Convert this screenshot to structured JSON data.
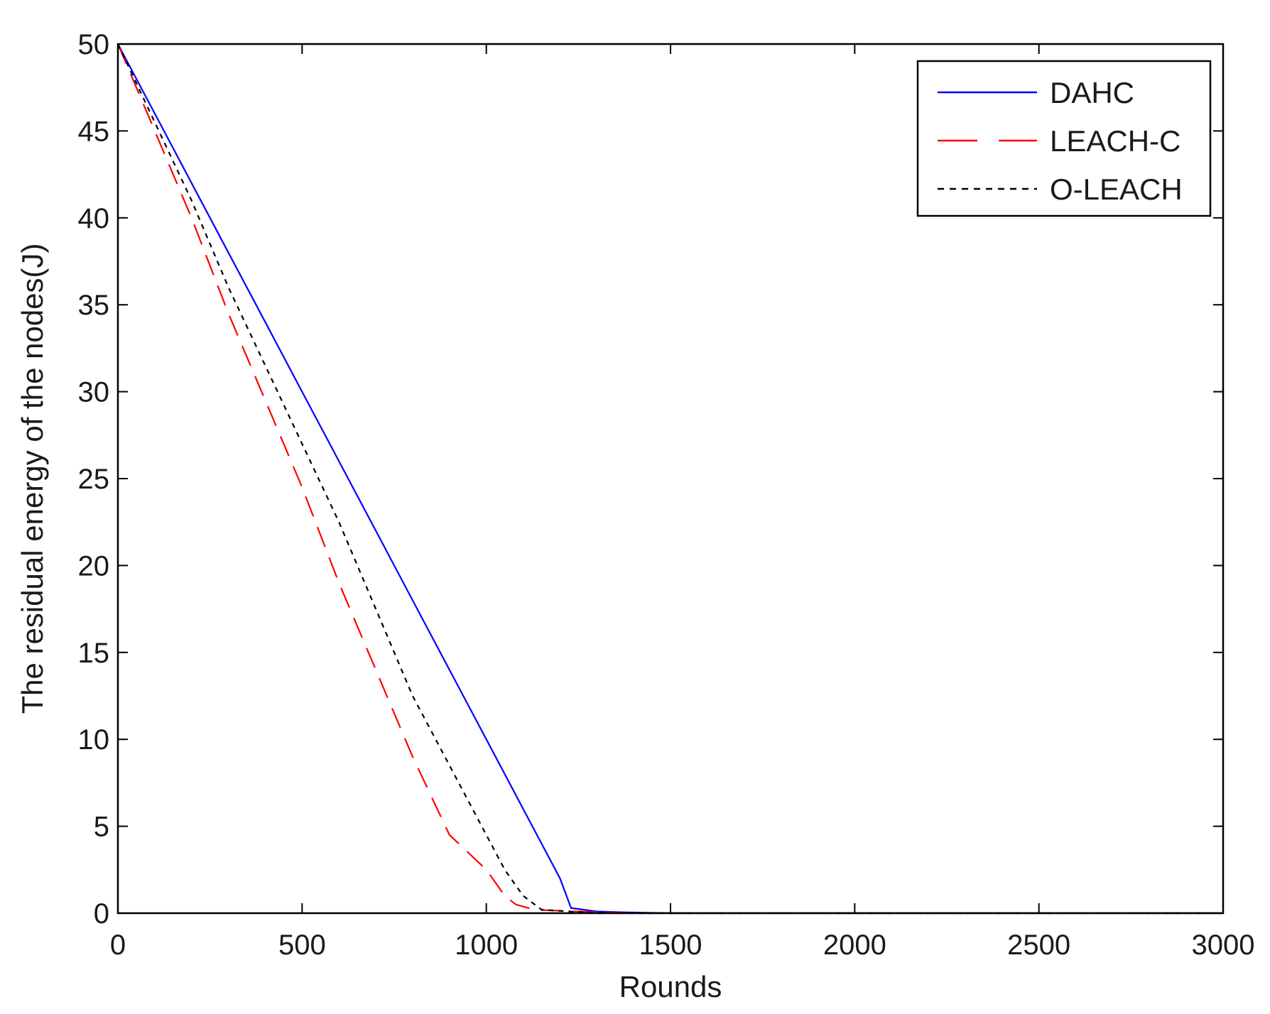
{
  "chart_data": {
    "type": "line",
    "title": "",
    "xlabel": "Rounds",
    "ylabel": "The residual energy of the nodes(J)",
    "xlim": [
      0,
      3000
    ],
    "ylim": [
      0,
      50
    ],
    "xticks": [
      0,
      500,
      1000,
      1500,
      2000,
      2500,
      3000
    ],
    "yticks": [
      0,
      5,
      10,
      15,
      20,
      25,
      30,
      35,
      40,
      45,
      50
    ],
    "grid": false,
    "legend_position": "top-right",
    "series": [
      {
        "name": "DAHC",
        "color": "#0000ff",
        "line_style": "solid",
        "x": [
          0,
          100,
          200,
          300,
          400,
          500,
          600,
          700,
          800,
          900,
          1000,
          1100,
          1200,
          1230,
          1300,
          1380,
          1500,
          2000,
          2500,
          3000
        ],
        "y": [
          50,
          46,
          42,
          38,
          34,
          30,
          26,
          22,
          18,
          14,
          10,
          6,
          2,
          0.3,
          0.1,
          0.05,
          0,
          0,
          0,
          0
        ]
      },
      {
        "name": "LEACH-C",
        "color": "#ff0000",
        "line_style": "dashed",
        "x": [
          0,
          100,
          200,
          300,
          400,
          500,
          600,
          700,
          800,
          900,
          1000,
          1050,
          1080,
          1130,
          1250,
          1400,
          2000,
          2500,
          3000
        ],
        "y": [
          50,
          45,
          40,
          34.5,
          29.5,
          24.5,
          19,
          14,
          9,
          4.5,
          2.5,
          1,
          0.5,
          0.2,
          0.1,
          0,
          0,
          0,
          0
        ]
      },
      {
        "name": "O-LEACH",
        "color": "#000000",
        "line_style": "dotted",
        "x": [
          0,
          100,
          200,
          300,
          400,
          500,
          600,
          700,
          800,
          900,
          1000,
          1050,
          1100,
          1150,
          1300,
          2000,
          2500,
          3000
        ],
        "y": [
          50,
          45.5,
          41,
          36,
          31.5,
          27,
          22.5,
          17.5,
          12.5,
          8.5,
          4.5,
          2.5,
          1,
          0.2,
          0,
          0,
          0,
          0
        ]
      }
    ]
  }
}
